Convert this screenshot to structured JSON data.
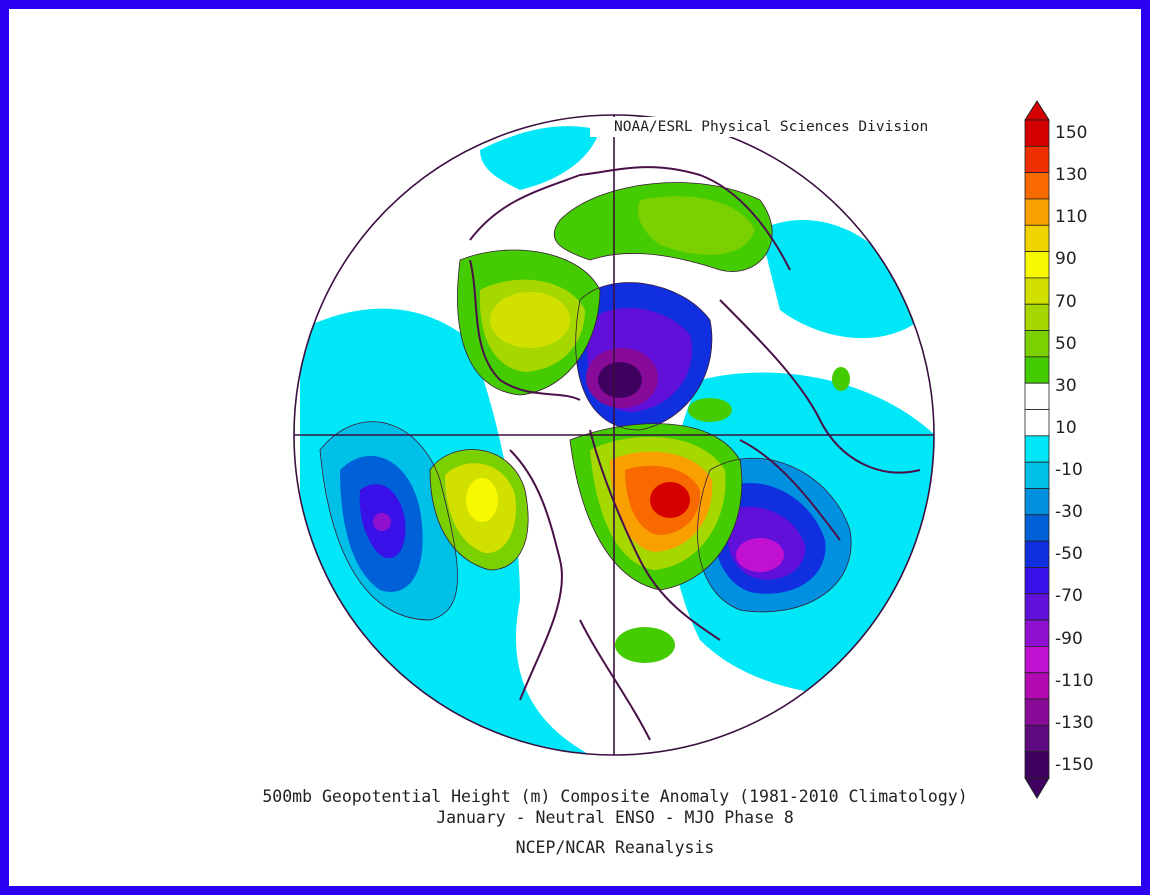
{
  "credit": "NOAA/ESRL Physical Sciences Division",
  "title_line1": "500mb Geopotential Height (m) Composite Anomaly (1981-2010 Climatology)",
  "title_line2": "January - Neutral ENSO - MJO Phase 8",
  "title_line3": "NCEP/NCAR Reanalysis",
  "colorbar": {
    "labels": [
      "150",
      "130",
      "110",
      "90",
      "70",
      "50",
      "30",
      "10",
      "-10",
      "-30",
      "-50",
      "-70",
      "-90",
      "-110",
      "-130",
      "-150"
    ],
    "colors": [
      "#d40000",
      "#ee3000",
      "#f86a00",
      "#f9a000",
      "#f0d400",
      "#f8f800",
      "#d2e000",
      "#a6d800",
      "#7ad000",
      "#44cc00",
      "#ffffff",
      "#ffffff",
      "#00e8f8",
      "#00c0e8",
      "#0090e0",
      "#0060d8",
      "#1030e0",
      "#3a10e8",
      "#6010d8",
      "#9010d0",
      "#c010d0",
      "#b00ab0",
      "#880a98",
      "#600a80",
      "#400060"
    ]
  },
  "map": {
    "projection": "polar stereographic, North Pole",
    "border_color": "#2c00f0",
    "coastline_color": "#4a1048"
  }
}
